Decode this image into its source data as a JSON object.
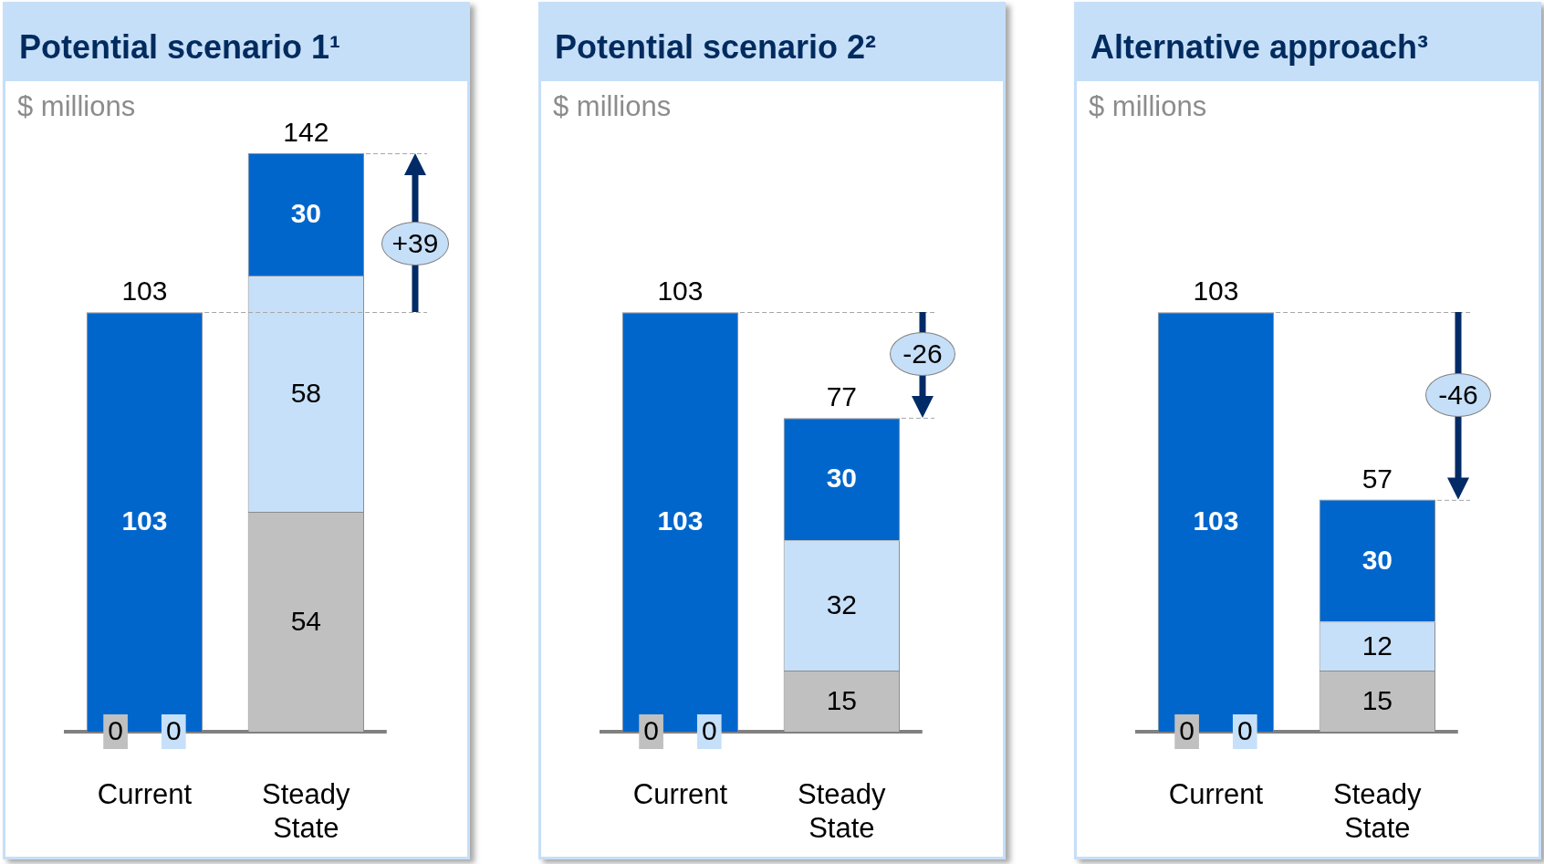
{
  "chart_data": [
    {
      "type": "bar",
      "title": "Potential scenario 1¹",
      "subtitle": "$ millions",
      "categories": [
        "Current",
        "Steady State"
      ],
      "stacked": true,
      "series": [
        {
          "color": "#c0c0c0",
          "values": [
            0,
            54
          ]
        },
        {
          "color": "#c6e0fa",
          "values": [
            0,
            58
          ]
        },
        {
          "color": "#0066cc",
          "values": [
            103,
            30
          ]
        }
      ],
      "data_labels": true,
      "totals": [
        "103",
        "142"
      ],
      "tick_labels": "x",
      "ref_lines": [
        {
          "axis": "y",
          "value": 103,
          "color": "#a6a6a6",
          "line_style": "dashed"
        }
      ],
      "annotations": [
        "+39"
      ]
    },
    {
      "type": "bar",
      "title": "Potential scenario 2²",
      "subtitle": "$ millions",
      "categories": [
        "Current",
        "Steady State"
      ],
      "stacked": true,
      "series": [
        {
          "color": "#c0c0c0",
          "values": [
            0,
            15
          ]
        },
        {
          "color": "#c6e0fa",
          "values": [
            0,
            32
          ]
        },
        {
          "color": "#0066cc",
          "values": [
            103,
            30
          ]
        }
      ],
      "data_labels": true,
      "totals": [
        "103",
        "77"
      ],
      "tick_labels": "x",
      "ref_lines": [
        {
          "axis": "y",
          "value": 103,
          "color": "#a6a6a6",
          "line_style": "dashed"
        }
      ],
      "annotations": [
        "-26"
      ]
    },
    {
      "type": "bar",
      "title": "Alternative approach³",
      "subtitle": "$ millions",
      "categories": [
        "Current",
        "Steady State"
      ],
      "stacked": true,
      "series": [
        {
          "color": "#c0c0c0",
          "values": [
            0,
            15
          ]
        },
        {
          "color": "#c6e0fa",
          "values": [
            0,
            12
          ]
        },
        {
          "color": "#0066cc",
          "values": [
            103,
            30
          ]
        }
      ],
      "data_labels": true,
      "totals": [
        "103",
        "57"
      ],
      "tick_labels": "x",
      "ref_lines": [
        {
          "axis": "y",
          "value": 103,
          "color": "#a6a6a6",
          "line_style": "dashed"
        }
      ],
      "annotations": [
        "-46"
      ]
    }
  ]
}
